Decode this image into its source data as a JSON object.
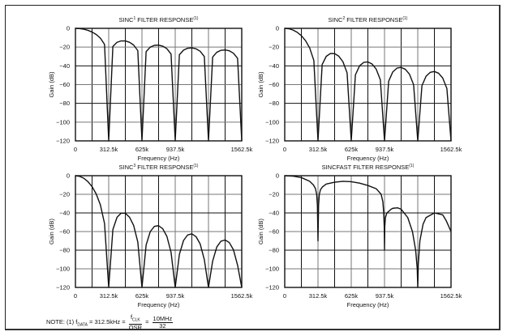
{
  "note": {
    "prefix": "NOTE: (1) f",
    "sub_data": "DATA",
    "eq1": " = 312.5kHz = ",
    "f_clk": "f",
    "sub_clk": "CLK",
    "osr": "OSR",
    "eq2": " = ",
    "num": "10MHz",
    "den": "32"
  },
  "colors": {
    "curve": "#111111",
    "grid": "#111111",
    "frame": "#222222"
  },
  "chart_data": [
    {
      "type": "line",
      "title": "SINC",
      "title_sup": "1",
      "title_rest": " FILTER RESPONSE",
      "title_note": "(1)",
      "xlabel": "Frequency (Hz)",
      "ylabel": "Gain (dB)",
      "xlim": [
        0,
        1562.5
      ],
      "ylim": [
        -120,
        0
      ],
      "grid": true,
      "xticks": [
        "0",
        "312.5k",
        "625k",
        "937.5k",
        "1562.5k"
      ],
      "xtick_values": [
        0,
        312.5,
        625,
        937.5,
        1562.5
      ],
      "yticks": [
        "0",
        "-20",
        "-40",
        "-60",
        "-80",
        "-100",
        "-120"
      ],
      "x_unit": "kHz",
      "x": [
        0,
        39.0625,
        78.125,
        117.1875,
        156.25,
        195.3125,
        234.375,
        273.4375,
        312.5,
        351.5625,
        390.625,
        429.6875,
        468.75,
        507.8125,
        546.875,
        585.9375,
        625,
        664.0625,
        703.125,
        742.1875,
        781.25,
        820.3125,
        859.375,
        898.4375,
        937.5,
        976.5625,
        1015.625,
        1054.6875,
        1093.75,
        1132.8125,
        1171.875,
        1210.9375,
        1250,
        1289.0625,
        1328.125,
        1367.1875,
        1406.25,
        1445.3125,
        1484.375,
        1523.4375,
        1562.5
      ],
      "y": [
        0,
        -0.22,
        -0.91,
        -2.11,
        -3.92,
        -6.55,
        -10.45,
        -17.13,
        -120,
        -19.31,
        -14.89,
        -13.4,
        -13.46,
        -14.85,
        -17.81,
        -23.75,
        -120,
        -24.83,
        -20,
        -18.14,
        -17.9,
        -19.01,
        -21.74,
        -27.46,
        -120,
        -28.18,
        -23.19,
        -21.2,
        -20.82,
        -21.82,
        -24.43,
        -30.05,
        -120,
        -30.59,
        -25.52,
        -23.45,
        -23.01,
        -23.93,
        -26.49,
        -32.04,
        -120
      ]
    },
    {
      "type": "line",
      "title": "SINC",
      "title_sup": "2",
      "title_rest": " FILTER RESPONSE",
      "title_note": "(1)",
      "xlabel": "Frequency (Hz)",
      "ylabel": "Gain (dB)",
      "xlim": [
        0,
        1562.5
      ],
      "ylim": [
        -120,
        0
      ],
      "grid": true,
      "xticks": [
        "0",
        "312.5k",
        "625k",
        "937.5k",
        "1562.5k"
      ],
      "xtick_values": [
        0,
        312.5,
        625,
        937.5,
        1562.5
      ],
      "yticks": [
        "0",
        "-20",
        "-40",
        "-60",
        "-80",
        "-100",
        "-120"
      ],
      "x_unit": "kHz",
      "x": [
        0,
        39.0625,
        78.125,
        117.1875,
        156.25,
        195.3125,
        234.375,
        273.4375,
        312.5,
        351.5625,
        390.625,
        429.6875,
        468.75,
        507.8125,
        546.875,
        585.9375,
        625,
        664.0625,
        703.125,
        742.1875,
        781.25,
        820.3125,
        859.375,
        898.4375,
        937.5,
        976.5625,
        1015.625,
        1054.6875,
        1093.75,
        1132.8125,
        1171.875,
        1210.9375,
        1250,
        1289.0625,
        1328.125,
        1367.1875,
        1406.25,
        1445.3125,
        1484.375,
        1523.4375,
        1562.5
      ],
      "y": [
        0,
        -0.44,
        -1.82,
        -4.22,
        -7.84,
        -13.1,
        -20.9,
        -34.26,
        -120,
        -38.62,
        -29.78,
        -26.8,
        -26.92,
        -29.7,
        -35.62,
        -47.5,
        -120,
        -49.66,
        -40,
        -36.28,
        -35.8,
        -38.02,
        -43.48,
        -54.92,
        -120,
        -56.36,
        -46.38,
        -42.4,
        -41.64,
        -43.64,
        -48.86,
        -60.1,
        -120,
        -61.18,
        -51.04,
        -46.9,
        -46.02,
        -47.86,
        -52.98,
        -64.08,
        -120
      ]
    },
    {
      "type": "line",
      "title": "SINC",
      "title_sup": "3",
      "title_rest": " FILTER RESPONSE",
      "title_note": "(1)",
      "xlabel": "Frequency (Hz)",
      "ylabel": "Gain (dB)",
      "xlim": [
        0,
        1562.5
      ],
      "ylim": [
        -120,
        0
      ],
      "grid": true,
      "xticks": [
        "0",
        "312.5k",
        "625k",
        "937.5k",
        "1562.5k"
      ],
      "xtick_values": [
        0,
        312.5,
        625,
        937.5,
        1562.5
      ],
      "yticks": [
        "0",
        "-20",
        "-40",
        "-60",
        "-80",
        "-100",
        "-120"
      ],
      "x_unit": "kHz",
      "x": [
        0,
        39.0625,
        78.125,
        117.1875,
        156.25,
        195.3125,
        234.375,
        273.4375,
        312.5,
        351.5625,
        390.625,
        429.6875,
        468.75,
        507.8125,
        546.875,
        585.9375,
        625,
        664.0625,
        703.125,
        742.1875,
        781.25,
        820.3125,
        859.375,
        898.4375,
        937.5,
        976.5625,
        1015.625,
        1054.6875,
        1093.75,
        1132.8125,
        1171.875,
        1210.9375,
        1250,
        1289.0625,
        1328.125,
        1367.1875,
        1406.25,
        1445.3125,
        1484.375,
        1523.4375,
        1562.5
      ],
      "y": [
        0,
        -0.66,
        -2.73,
        -6.33,
        -11.76,
        -19.65,
        -31.35,
        -51.39,
        -120,
        -57.93,
        -44.67,
        -40.2,
        -40.38,
        -44.55,
        -53.43,
        -71.25,
        -120,
        -74.49,
        -60,
        -54.42,
        -53.7,
        -57.03,
        -65.22,
        -82.38,
        -120,
        -84.54,
        -69.57,
        -63.6,
        -62.46,
        -65.46,
        -73.29,
        -90.15,
        -120,
        -91.77,
        -76.56,
        -70.35,
        -69.03,
        -71.79,
        -79.47,
        -96.12,
        -120
      ]
    },
    {
      "type": "line",
      "title": "SINCFAST FILTER RESPONSE",
      "title_sup": "",
      "title_rest": "",
      "title_note": "(1)",
      "xlabel": "Frequency (Hz)",
      "ylabel": "Gain (dB)",
      "xlim": [
        0,
        1562.5
      ],
      "ylim": [
        -120,
        0
      ],
      "grid": true,
      "xticks": [
        "0",
        "312.5k",
        "625k",
        "937.5k",
        "1562.5k"
      ],
      "xtick_values": [
        0,
        312.5,
        625,
        937.5,
        1562.5
      ],
      "yticks": [
        "0",
        "-20",
        "-40",
        "-60",
        "-80",
        "-100",
        "-120"
      ],
      "x_unit": "kHz",
      "x": [
        0,
        78,
        156,
        234,
        270,
        289,
        300,
        307,
        312.5,
        318,
        325,
        336,
        355,
        390,
        469,
        547,
        625,
        703,
        781,
        860,
        906,
        922,
        930,
        935,
        937.5,
        940,
        946,
        960,
        1000,
        1016,
        1060,
        1094,
        1156,
        1200,
        1230,
        1245,
        1250,
        1255,
        1270,
        1300,
        1328,
        1406,
        1484,
        1516,
        1562.5
      ],
      "y": [
        0,
        -0.5,
        -2,
        -6,
        -10,
        -14,
        -20,
        -32,
        -70,
        -32,
        -20,
        -15,
        -12,
        -9,
        -7,
        -6,
        -6.5,
        -8,
        -10.5,
        -14,
        -20,
        -28,
        -40,
        -55,
        -80,
        -55,
        -45,
        -40,
        -36,
        -35,
        -34.5,
        -36,
        -45,
        -60,
        -80,
        -100,
        -120,
        -95,
        -70,
        -52,
        -45,
        -40,
        -42,
        -48,
        -60
      ]
    }
  ]
}
